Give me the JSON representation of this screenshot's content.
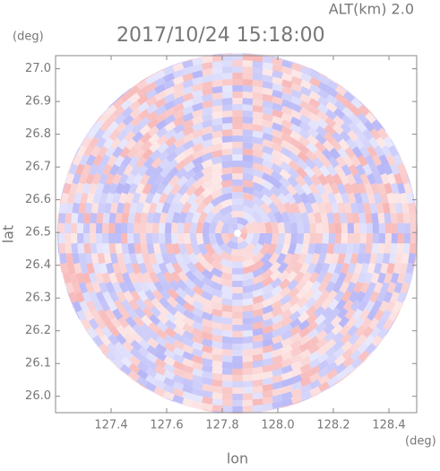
{
  "chart_data": {
    "type": "radar-ppi",
    "title": "2017/10/24 15:18:00",
    "annotation": "ALT(km) 2.0",
    "x_label": "lon",
    "x_unit": "(deg)",
    "y_label": "lat",
    "y_unit": "(deg)",
    "xlim": [
      127.2,
      128.5
    ],
    "xticks": [
      127.4,
      127.6,
      127.8,
      {
        "value": 128,
        "label": "128.0"
      },
      128.2,
      128.4
    ],
    "ylim": [
      25.95,
      27.04
    ],
    "yticks": [
      {
        "value": 26,
        "label": "26.0"
      },
      26.1,
      26.2,
      26.3,
      26.4,
      26.5,
      26.6,
      26.7,
      26.8,
      26.9,
      {
        "value": 27,
        "label": "27.0"
      }
    ]
  }
}
